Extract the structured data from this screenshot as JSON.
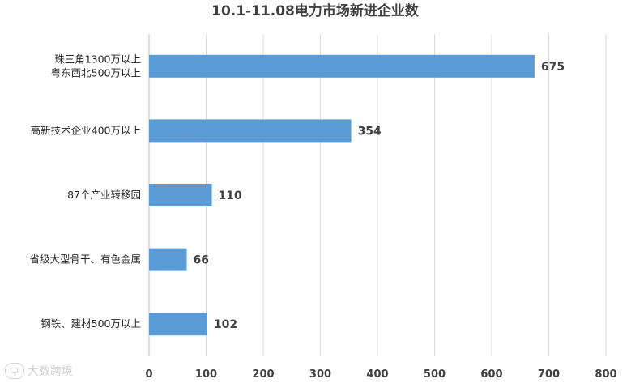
{
  "chart_data": {
    "type": "bar",
    "orientation": "horizontal",
    "title": "10.1-11.08电力市场新进企业数",
    "categories": [
      [
        "珠三角1300万以上",
        "粤东西北500万以上"
      ],
      [
        "高新技术企业400万以上"
      ],
      [
        "87个产业转移园"
      ],
      [
        "省级大型骨干、有色金属"
      ],
      [
        "钢铁、建材500万以上"
      ]
    ],
    "values": [
      675,
      354,
      110,
      66,
      102
    ],
    "xlim": [
      0,
      800
    ],
    "xticks": [
      0,
      100,
      200,
      300,
      400,
      500,
      600,
      700,
      800
    ],
    "grid": true,
    "bar_color": "#5b9bd5",
    "xlabel": "",
    "ylabel": ""
  },
  "watermark": {
    "text": "大数跨境",
    "icon": "chat-bubble-icon"
  }
}
